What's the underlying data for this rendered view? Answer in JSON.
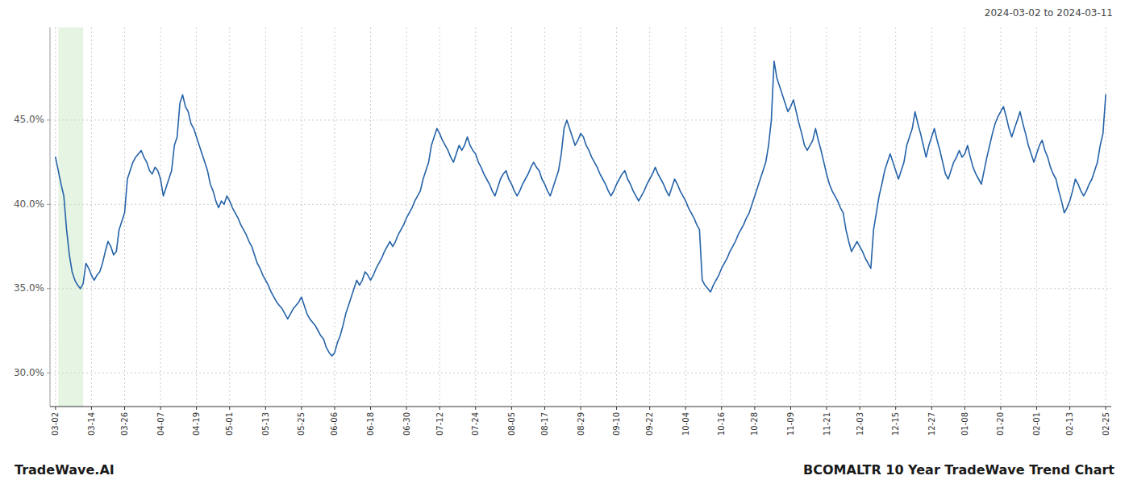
{
  "chart_data": {
    "type": "line",
    "title": "BCOMALTR 10 Year TradeWave Trend Chart",
    "subtitle": "2024-03-02 to 2024-03-11",
    "annotations": [
      "TradeWave.AI"
    ],
    "color": "#2563a8",
    "grid": true,
    "ylim": [
      28.0,
      50.5
    ],
    "yticks": [
      {
        "value": 30.0,
        "label": "30.0%"
      },
      {
        "value": 35.0,
        "label": "35.0%"
      },
      {
        "value": 40.0,
        "label": "40.0%"
      },
      {
        "value": 45.0,
        "label": "45.0%"
      }
    ],
    "highlight": {
      "start": 1,
      "end": 10,
      "color": "#c8e6c0"
    },
    "categories": [
      "03-02",
      null,
      null,
      null,
      null,
      null,
      null,
      null,
      null,
      null,
      null,
      null,
      null,
      "03-14",
      null,
      null,
      null,
      null,
      null,
      null,
      null,
      null,
      null,
      null,
      null,
      "03-26",
      null,
      null,
      null,
      null,
      null,
      null,
      null,
      null,
      null,
      null,
      null,
      null,
      "04-07",
      null,
      null,
      null,
      null,
      null,
      null,
      null,
      null,
      null,
      null,
      null,
      null,
      "04-19",
      null,
      null,
      null,
      null,
      null,
      null,
      null,
      null,
      null,
      null,
      null,
      "05-01",
      null,
      null,
      null,
      null,
      null,
      null,
      null,
      null,
      null,
      null,
      null,
      null,
      "05-13",
      null,
      null,
      null,
      null,
      null,
      null,
      null,
      null,
      null,
      null,
      null,
      null,
      "05-25",
      null,
      null,
      null,
      null,
      null,
      null,
      null,
      null,
      null,
      null,
      null,
      "06-06",
      null,
      null,
      null,
      null,
      null,
      null,
      null,
      null,
      null,
      null,
      null,
      null,
      "06-18",
      null,
      null,
      null,
      null,
      null,
      null,
      null,
      null,
      null,
      null,
      null,
      null,
      "06-30",
      null,
      null,
      null,
      null,
      null,
      null,
      null,
      null,
      null,
      null,
      null,
      "07-12",
      null,
      null,
      null,
      null,
      null,
      null,
      null,
      null,
      null,
      null,
      null,
      null,
      "07-24",
      null,
      null,
      null,
      null,
      null,
      null,
      null,
      null,
      null,
      null,
      null,
      null,
      "08-05",
      null,
      null,
      null,
      null,
      null,
      null,
      null,
      null,
      null,
      null,
      null,
      "08-17",
      null,
      null,
      null,
      null,
      null,
      null,
      null,
      null,
      null,
      null,
      null,
      null,
      "08-29",
      null,
      null,
      null,
      null,
      null,
      null,
      null,
      null,
      null,
      null,
      null,
      null,
      "09-10",
      null,
      null,
      null,
      null,
      null,
      null,
      null,
      null,
      null,
      null,
      null,
      "09-22",
      null,
      null,
      null,
      null,
      null,
      null,
      null,
      null,
      null,
      null,
      null,
      null,
      "10-04",
      null,
      null,
      null,
      null,
      null,
      null,
      null,
      null,
      null,
      null,
      null,
      null,
      "10-16",
      null,
      null,
      null,
      null,
      null,
      null,
      null,
      null,
      null,
      null,
      null,
      "10-28",
      null,
      null,
      null,
      null,
      null,
      null,
      null,
      null,
      null,
      null,
      null,
      null,
      "11-09",
      null,
      null,
      null,
      null,
      null,
      null,
      null,
      null,
      null,
      null,
      null,
      null,
      "11-21",
      null,
      null,
      null,
      null,
      null,
      null,
      null,
      null,
      null,
      null,
      null,
      "12-03",
      null,
      null,
      null,
      null,
      null,
      null,
      null,
      null,
      null,
      null,
      null,
      null,
      "12-15",
      null,
      null,
      null,
      null,
      null,
      null,
      null,
      null,
      null,
      null,
      null,
      null,
      "12-27",
      null,
      null,
      null,
      null,
      null,
      null,
      null,
      null,
      null,
      null,
      null,
      "01-08",
      null,
      null,
      null,
      null,
      null,
      null,
      null,
      null,
      null,
      null,
      null,
      null,
      "01-20",
      null,
      null,
      null,
      null,
      null,
      null,
      null,
      null,
      null,
      null,
      null,
      null,
      "02-01",
      null,
      null,
      null,
      null,
      null,
      null,
      null,
      null,
      null,
      null,
      null,
      "02-13",
      null,
      null,
      null,
      null,
      null,
      null,
      null,
      null,
      null,
      null,
      null,
      null,
      "02-25"
    ],
    "values": [
      42.8,
      42.0,
      41.2,
      40.5,
      38.5,
      37.0,
      36.0,
      35.5,
      35.2,
      35.0,
      35.3,
      36.5,
      36.2,
      35.8,
      35.5,
      35.8,
      36.0,
      36.5,
      37.2,
      37.8,
      37.5,
      37.0,
      37.2,
      38.5,
      39.0,
      39.5,
      41.5,
      42.0,
      42.5,
      42.8,
      43.0,
      43.2,
      42.8,
      42.5,
      42.0,
      41.8,
      42.2,
      42.0,
      41.5,
      40.5,
      41.0,
      41.5,
      42.0,
      43.5,
      44.0,
      46.0,
      46.5,
      45.8,
      45.5,
      44.8,
      44.5,
      44.0,
      43.5,
      43.0,
      42.5,
      42.0,
      41.2,
      40.8,
      40.2,
      39.8,
      40.2,
      40.0,
      40.5,
      40.2,
      39.8,
      39.5,
      39.2,
      38.8,
      38.5,
      38.2,
      37.8,
      37.5,
      37.0,
      36.5,
      36.2,
      35.8,
      35.5,
      35.2,
      34.8,
      34.5,
      34.2,
      34.0,
      33.8,
      33.5,
      33.2,
      33.5,
      33.8,
      34.0,
      34.2,
      34.5,
      34.0,
      33.5,
      33.2,
      33.0,
      32.8,
      32.5,
      32.2,
      32.0,
      31.5,
      31.2,
      31.0,
      31.2,
      31.8,
      32.2,
      32.8,
      33.5,
      34.0,
      34.5,
      35.0,
      35.5,
      35.2,
      35.5,
      36.0,
      35.8,
      35.5,
      35.8,
      36.2,
      36.5,
      36.8,
      37.2,
      37.5,
      37.8,
      37.5,
      37.8,
      38.2,
      38.5,
      38.8,
      39.2,
      39.5,
      39.8,
      40.2,
      40.5,
      40.8,
      41.5,
      42.0,
      42.5,
      43.5,
      44.0,
      44.5,
      44.2,
      43.8,
      43.5,
      43.2,
      42.8,
      42.5,
      43.0,
      43.5,
      43.2,
      43.5,
      44.0,
      43.5,
      43.2,
      43.0,
      42.5,
      42.2,
      41.8,
      41.5,
      41.2,
      40.8,
      40.5,
      41.0,
      41.5,
      41.8,
      42.0,
      41.5,
      41.2,
      40.8,
      40.5,
      40.8,
      41.2,
      41.5,
      41.8,
      42.2,
      42.5,
      42.2,
      42.0,
      41.5,
      41.2,
      40.8,
      40.5,
      41.0,
      41.5,
      42.0,
      43.0,
      44.5,
      45.0,
      44.5,
      44.0,
      43.5,
      43.8,
      44.2,
      44.0,
      43.5,
      43.2,
      42.8,
      42.5,
      42.2,
      41.8,
      41.5,
      41.2,
      40.8,
      40.5,
      40.8,
      41.2,
      41.5,
      41.8,
      42.0,
      41.5,
      41.2,
      40.8,
      40.5,
      40.2,
      40.5,
      40.8,
      41.2,
      41.5,
      41.8,
      42.2,
      41.8,
      41.5,
      41.2,
      40.8,
      40.5,
      41.0,
      41.5,
      41.2,
      40.8,
      40.5,
      40.2,
      39.8,
      39.5,
      39.2,
      38.8,
      38.5,
      35.5,
      35.2,
      35.0,
      34.8,
      35.2,
      35.5,
      35.8,
      36.2,
      36.5,
      36.8,
      37.2,
      37.5,
      37.8,
      38.2,
      38.5,
      38.8,
      39.2,
      39.5,
      40.0,
      40.5,
      41.0,
      41.5,
      42.0,
      42.5,
      43.5,
      45.0,
      48.5,
      47.5,
      47.0,
      46.5,
      46.0,
      45.5,
      45.8,
      46.2,
      45.5,
      44.8,
      44.2,
      43.5,
      43.2,
      43.5,
      43.8,
      44.5,
      43.8,
      43.2,
      42.5,
      41.8,
      41.2,
      40.8,
      40.5,
      40.2,
      39.8,
      39.5,
      38.5,
      37.8,
      37.2,
      37.5,
      37.8,
      37.5,
      37.2,
      36.8,
      36.5,
      36.2,
      38.5,
      39.5,
      40.5,
      41.2,
      42.0,
      42.5,
      43.0,
      42.5,
      42.0,
      41.5,
      42.0,
      42.5,
      43.5,
      44.0,
      44.5,
      45.5,
      44.8,
      44.2,
      43.5,
      42.8,
      43.5,
      44.0,
      44.5,
      43.8,
      43.2,
      42.5,
      41.8,
      41.5,
      42.0,
      42.5,
      42.8,
      43.2,
      42.8,
      43.0,
      43.5,
      42.8,
      42.2,
      41.8,
      41.5,
      41.2,
      42.0,
      42.8,
      43.5,
      44.2,
      44.8,
      45.2,
      45.5,
      45.8,
      45.2,
      44.5,
      44.0,
      44.5,
      45.0,
      45.5,
      44.8,
      44.2,
      43.5,
      43.0,
      42.5,
      43.0,
      43.5,
      43.8,
      43.2,
      42.8,
      42.2,
      41.8,
      41.5,
      40.8,
      40.2,
      39.5,
      39.8,
      40.2,
      40.8,
      41.5,
      41.2,
      40.8,
      40.5,
      40.8,
      41.2,
      41.5,
      42.0,
      42.5,
      43.5,
      44.2,
      46.5
    ]
  }
}
